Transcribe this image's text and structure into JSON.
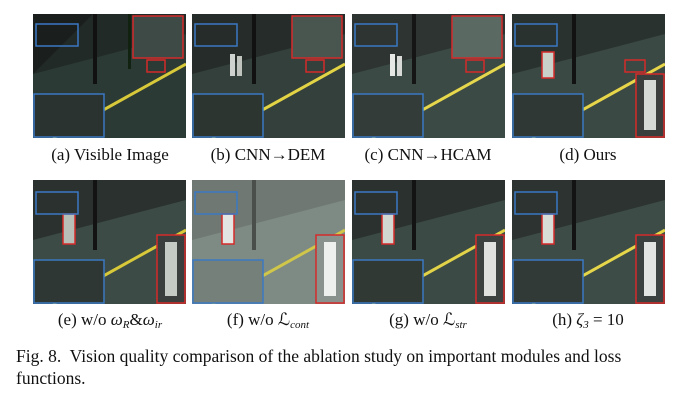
{
  "figure": {
    "caption_label": "Fig. 8.",
    "caption_text": "Vision quality comparison of the ablation study on important modules and loss functions."
  },
  "row1": [
    {
      "label": "(a) Visible Image"
    },
    {
      "label": "(b) CNN→DEM"
    },
    {
      "label": "(c) CNN→HCAM"
    },
    {
      "label": "(d) Ours"
    }
  ],
  "row2": [
    {
      "label_prefix": "(e) w/o ",
      "math": "ω",
      "sub1": "R",
      "amp": "&",
      "math2": "ω",
      "sub2": "ir"
    },
    {
      "label_prefix": "(f) w/o ",
      "math": "ℒ",
      "sub1": "cont"
    },
    {
      "label_prefix": "(g) w/o ",
      "math": "ℒ",
      "sub1": "str"
    },
    {
      "label_prefix": "(h) ",
      "math": "ζ",
      "sub1": "3",
      "suffix": " = 10"
    }
  ],
  "colors": {
    "inset_blue": "#3a78c2",
    "inset_red": "#d42a2a",
    "road_line": "#e8d64a"
  }
}
